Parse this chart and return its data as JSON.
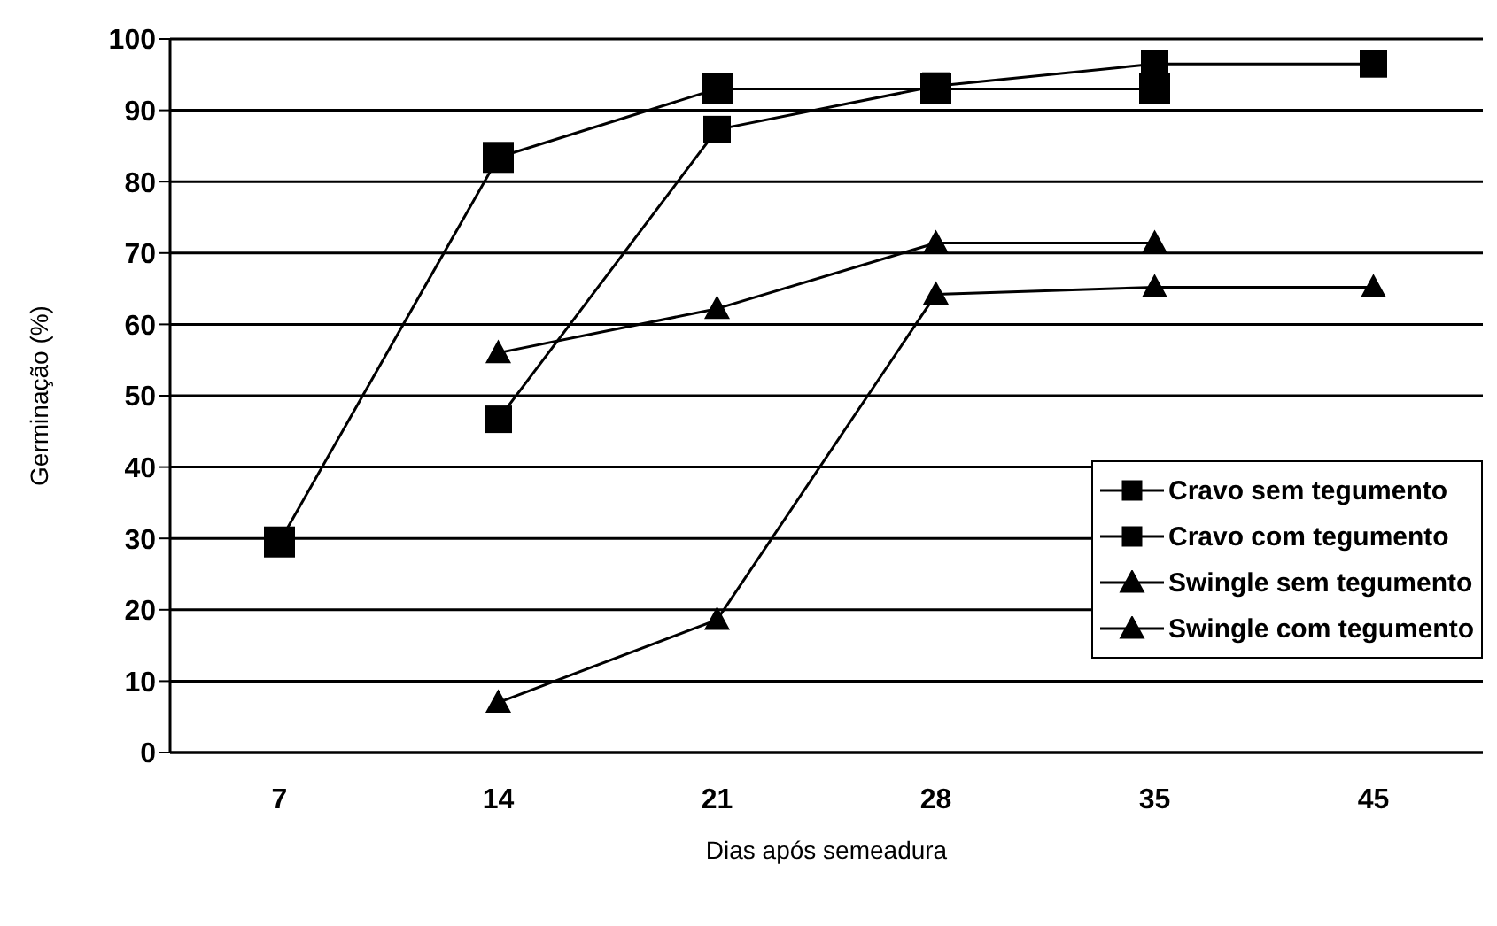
{
  "chart_data": {
    "type": "line",
    "xlabel": "Dias após semeadura",
    "ylabel": "Germinação (%)",
    "categories": [
      "7",
      "14",
      "21",
      "28",
      "35",
      "45"
    ],
    "series": [
      {
        "name": "Cravo sem tegumento",
        "color": "#000000",
        "marker": "square",
        "values": [
          29.5,
          83.4,
          93,
          93,
          93,
          null
        ]
      },
      {
        "name": "Cravo com tegumento",
        "color": "#000000",
        "marker": "square",
        "values": [
          null,
          46.7,
          87.3,
          93.4,
          96.5,
          96.5
        ]
      },
      {
        "name": "Swingle sem tegumento",
        "color": "#000000",
        "marker": "triangle",
        "values": [
          null,
          56,
          62.2,
          71.4,
          71.4,
          null
        ]
      },
      {
        "name": "Swingle com tegumento",
        "color": "#000000",
        "marker": "triangle",
        "values": [
          null,
          7,
          18.6,
          64.2,
          65.2,
          65.2
        ]
      }
    ],
    "ylim": [
      0,
      100
    ],
    "yticks": [
      0,
      10,
      20,
      30,
      40,
      50,
      60,
      70,
      80,
      90,
      100
    ],
    "grid": "y",
    "legend": "bottom right",
    "line_style": "solid"
  }
}
